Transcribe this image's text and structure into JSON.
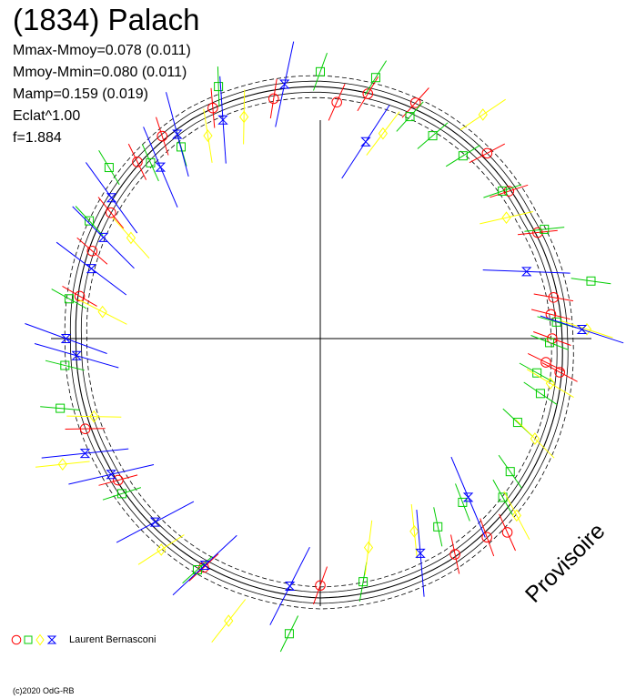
{
  "header": {
    "title": "(1834) Palach",
    "stats": [
      "Mmax-Mmoy=0.078 (0.011)",
      "Mmoy-Mmin=0.080 (0.011)",
      "Mamp=0.159 (0.019)",
      "Eclat^1.00",
      "f=1.884"
    ]
  },
  "legend": {
    "author": "Laurent Bernasconi"
  },
  "footer": {
    "copyright": "(c)2020 OdG-RB"
  },
  "stamp": "Provisoire",
  "colors": {
    "red": "#ff0000",
    "green": "#00cc00",
    "yellow": "#ffff00",
    "blue": "#0000ff",
    "axes": "#000000"
  },
  "chart_data": {
    "type": "scatter",
    "coordinates": "polar",
    "title": "(1834) Palach",
    "angle_unit": "rotational phase in degrees, clockwise from top",
    "radius_unit": "relative brightness (mean curve radius = 1.0)",
    "mean_curve": [
      {
        "phase": 0,
        "r": 1.01
      },
      {
        "phase": 30,
        "r": 0.99
      },
      {
        "phase": 60,
        "r": 0.96
      },
      {
        "phase": 90,
        "r": 0.97
      },
      {
        "phase": 120,
        "r": 1.0
      },
      {
        "phase": 150,
        "r": 1.03
      },
      {
        "phase": 180,
        "r": 1.04
      },
      {
        "phase": 210,
        "r": 1.02
      },
      {
        "phase": 240,
        "r": 0.99
      },
      {
        "phase": 270,
        "r": 0.98
      },
      {
        "phase": 300,
        "r": 1.0
      },
      {
        "phase": 330,
        "r": 1.02
      }
    ],
    "series": [
      {
        "color": "red",
        "marker": "circle",
        "points": [
          {
            "phase": 349,
            "r": 0.98
          },
          {
            "phase": 4,
            "r": 0.95
          },
          {
            "phase": 11,
            "r": 1.0
          },
          {
            "phase": 22,
            "r": 1.02
          },
          {
            "phase": 42,
            "r": 1.0
          },
          {
            "phase": 52,
            "r": 0.96
          },
          {
            "phase": 64,
            "r": 0.97
          },
          {
            "phase": 80,
            "r": 0.95
          },
          {
            "phase": 84,
            "r": 0.93
          },
          {
            "phase": 90,
            "r": 0.93
          },
          {
            "phase": 96,
            "r": 0.91
          },
          {
            "phase": 98,
            "r": 0.97
          },
          {
            "phase": 136,
            "r": 1.08
          },
          {
            "phase": 140,
            "r": 1.04
          },
          {
            "phase": 148,
            "r": 1.02
          },
          {
            "phase": 180,
            "r": 0.99
          },
          {
            "phase": 207,
            "r": 1.03
          },
          {
            "phase": 235,
            "r": 0.99
          },
          {
            "phase": 249,
            "r": 1.01
          },
          {
            "phase": 280,
            "r": 0.98
          },
          {
            "phase": 291,
            "r": 0.98
          },
          {
            "phase": 301,
            "r": 0.98
          },
          {
            "phase": 314,
            "r": 1.02
          },
          {
            "phase": 322,
            "r": 1.03
          },
          {
            "phase": 335,
            "r": 1.02
          }
        ]
      },
      {
        "color": "green",
        "marker": "square",
        "points": [
          {
            "phase": 338,
            "r": 1.09
          },
          {
            "phase": 0,
            "r": 1.07
          },
          {
            "phase": 12,
            "r": 1.07
          },
          {
            "phase": 22,
            "r": 0.96
          },
          {
            "phase": 29,
            "r": 0.93
          },
          {
            "phase": 38,
            "r": 0.93
          },
          {
            "phase": 51,
            "r": 0.94
          },
          {
            "phase": 64,
            "r": 1.0
          },
          {
            "phase": 78,
            "r": 1.11
          },
          {
            "phase": 86,
            "r": 0.95
          },
          {
            "phase": 91,
            "r": 0.92
          },
          {
            "phase": 99,
            "r": 0.88
          },
          {
            "phase": 104,
            "r": 0.91
          },
          {
            "phase": 113,
            "r": 0.86
          },
          {
            "phase": 125,
            "r": 0.93
          },
          {
            "phase": 131,
            "r": 0.97
          },
          {
            "phase": 139,
            "r": 0.87
          },
          {
            "phase": 148,
            "r": 0.89
          },
          {
            "phase": 170,
            "r": 0.99
          },
          {
            "phase": 186,
            "r": 1.19
          },
          {
            "phase": 208,
            "r": 1.05
          },
          {
            "phase": 232,
            "r": 1.01
          },
          {
            "phase": 255,
            "r": 1.08
          },
          {
            "phase": 264,
            "r": 1.03
          },
          {
            "phase": 279,
            "r": 1.02
          },
          {
            "phase": 297,
            "r": 1.04
          },
          {
            "phase": 309,
            "r": 1.09
          },
          {
            "phase": 316,
            "r": 0.98
          },
          {
            "phase": 324,
            "r": 0.95
          }
        ]
      },
      {
        "color": "yellow",
        "marker": "diamond",
        "points": [
          {
            "phase": 17,
            "r": 0.86
          },
          {
            "phase": 36,
            "r": 1.11
          },
          {
            "phase": 57,
            "r": 0.89
          },
          {
            "phase": 88,
            "r": 1.07
          },
          {
            "phase": 101,
            "r": 0.94
          },
          {
            "phase": 115,
            "r": 0.95
          },
          {
            "phase": 132,
            "r": 1.06
          },
          {
            "phase": 154,
            "r": 0.86
          },
          {
            "phase": 167,
            "r": 0.86
          },
          {
            "phase": 198,
            "r": 1.19
          },
          {
            "phase": 217,
            "r": 1.06
          },
          {
            "phase": 244,
            "r": 1.15
          },
          {
            "phase": 251,
            "r": 0.96
          },
          {
            "phase": 277,
            "r": 0.88
          },
          {
            "phase": 298,
            "r": 0.86
          },
          {
            "phase": 331,
            "r": 0.93
          },
          {
            "phase": 341,
            "r": 0.94
          }
        ]
      },
      {
        "color": "blue",
        "marker": "star",
        "points": [
          {
            "phase": 352,
            "r": 1.03
          },
          {
            "phase": 336,
            "r": 0.96
          },
          {
            "phase": 13,
            "r": 0.81
          },
          {
            "phase": 72,
            "r": 0.87
          },
          {
            "phase": 88,
            "r": 1.05
          },
          {
            "phase": 137,
            "r": 0.87
          },
          {
            "phase": 155,
            "r": 0.95
          },
          {
            "phase": 187,
            "r": 1.0
          },
          {
            "phase": 207,
            "r": 1.02
          },
          {
            "phase": 222,
            "r": 0.99
          },
          {
            "phase": 237,
            "r": 1.0
          },
          {
            "phase": 266,
            "r": 0.98
          },
          {
            "phase": 287,
            "r": 0.96
          },
          {
            "phase": 295,
            "r": 0.96
          },
          {
            "phase": 304,
            "r": 1.01
          },
          {
            "phase": 317,
            "r": 0.94
          },
          {
            "phase": 325,
            "r": 1.0
          },
          {
            "phase": 244,
            "r": 1.05
          },
          {
            "phase": 270,
            "r": 1.02
          }
        ]
      }
    ]
  }
}
